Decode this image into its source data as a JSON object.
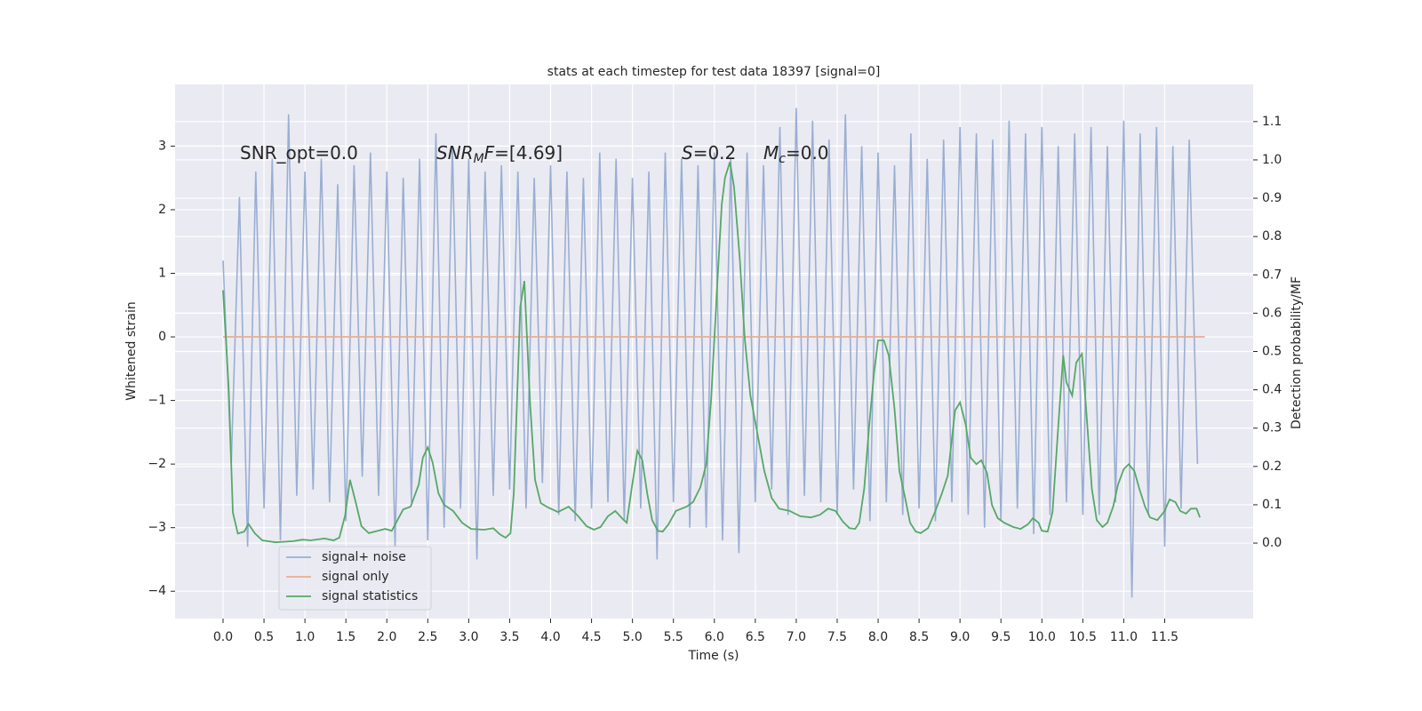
{
  "chart_data": {
    "type": "line",
    "title": "stats at each timestep for test data 18397 [signal=0]",
    "xlabel": "Time (s)",
    "ylabel": "Whitened strain",
    "y2label": "Detection probability/MF",
    "xlim": [
      -0.586,
      12.58
    ],
    "ylim": [
      -4.43,
      3.97
    ],
    "y2lim": [
      -0.197,
      1.197
    ],
    "xticks": [
      {
        "value": 0,
        "label": "0.0"
      },
      0.5,
      {
        "value": 1,
        "label": "1.0"
      },
      1.5,
      {
        "value": 2,
        "label": "2.0"
      },
      2.5,
      {
        "value": 3,
        "label": "3.0"
      },
      3.5,
      {
        "value": 4,
        "label": "4.0"
      },
      4.5,
      {
        "value": 5,
        "label": "5.0"
      },
      5.5,
      {
        "value": 6,
        "label": "6.0"
      },
      6.5,
      {
        "value": 7,
        "label": "7.0"
      },
      7.5,
      {
        "value": 8,
        "label": "8.0"
      },
      8.5,
      {
        "value": 9,
        "label": "9.0"
      },
      9.5,
      {
        "value": 10,
        "label": "10.0"
      },
      10.5,
      {
        "value": 11,
        "label": "11.0"
      },
      11.5
    ],
    "yticks": [
      {
        "value": -4,
        "label": "−4"
      },
      {
        "value": -3,
        "label": "−3"
      },
      {
        "value": -2,
        "label": "−2"
      },
      {
        "value": -1,
        "label": "−1"
      },
      0,
      1,
      2,
      3
    ],
    "y2ticks": [
      {
        "value": 0,
        "label": "0.0"
      },
      0.1,
      0.2,
      0.3,
      0.4,
      0.5,
      0.6,
      0.7,
      0.8,
      0.9,
      {
        "value": 1,
        "label": "1.0"
      },
      1.1
    ],
    "grid": true,
    "legend_loc": "lower left",
    "annotations": [
      {
        "parts": [
          {
            "text": "SNR_opt=0.0",
            "style": "normal"
          }
        ]
      },
      {
        "parts": [
          {
            "text": "SNR",
            "style": "italic"
          },
          {
            "text": "M",
            "style": "sub"
          },
          {
            "text": "F",
            "style": "italic"
          },
          {
            "text": "=[4.69]",
            "style": "normal"
          }
        ]
      },
      {
        "parts": [
          {
            "text": "S",
            "style": "italic"
          },
          {
            "text": "=0.2",
            "style": "normal"
          }
        ]
      },
      {
        "parts": [
          {
            "text": "M",
            "style": "italic"
          },
          {
            "text": "c",
            "style": "sub"
          },
          {
            "text": "=0.0",
            "style": "normal"
          }
        ]
      }
    ],
    "series": [
      {
        "name": "signal+ noise",
        "color": "#9aaed3",
        "x": [
          0.0,
          0.1,
          0.2,
          0.3,
          0.4,
          0.5,
          0.6,
          0.7,
          0.8,
          0.9,
          1.0,
          1.1,
          1.2,
          1.3,
          1.4,
          1.5,
          1.6,
          1.7,
          1.8,
          1.9,
          2.0,
          2.1,
          2.2,
          2.3,
          2.4,
          2.5,
          2.6,
          2.7,
          2.8,
          2.9,
          3.0,
          3.1,
          3.2,
          3.3,
          3.4,
          3.5,
          3.6,
          3.7,
          3.8,
          3.9,
          4.0,
          4.1,
          4.2,
          4.3,
          4.4,
          4.5,
          4.6,
          4.7,
          4.8,
          4.9,
          5.0,
          5.1,
          5.2,
          5.3,
          5.4,
          5.5,
          5.6,
          5.7,
          5.8,
          5.9,
          6.0,
          6.1,
          6.2,
          6.3,
          6.4,
          6.5,
          6.6,
          6.7,
          6.8,
          6.9,
          7.0,
          7.1,
          7.2,
          7.3,
          7.4,
          7.5,
          7.6,
          7.7,
          7.8,
          7.9,
          8.0,
          8.1,
          8.2,
          8.3,
          8.4,
          8.5,
          8.6,
          8.7,
          8.8,
          8.9,
          9.0,
          9.1,
          9.2,
          9.3,
          9.4,
          9.5,
          9.6,
          9.7,
          9.8,
          9.9,
          10.0,
          10.1,
          10.2,
          10.3,
          10.4,
          10.5,
          10.6,
          10.7,
          10.8,
          10.9,
          11.0,
          11.1,
          11.2,
          11.3,
          11.4,
          11.5,
          11.6,
          11.7,
          11.8,
          11.9
        ],
        "values": [
          1.2,
          -2.0,
          2.2,
          -3.3,
          2.6,
          -2.7,
          2.8,
          -3.2,
          3.5,
          -2.5,
          2.6,
          -2.4,
          2.8,
          -2.6,
          2.4,
          -2.9,
          2.7,
          -2.2,
          2.9,
          -2.5,
          2.6,
          -3.3,
          2.5,
          -2.6,
          2.8,
          -3.2,
          3.2,
          -3.0,
          3.0,
          -2.7,
          2.8,
          -3.5,
          2.6,
          -2.5,
          2.7,
          -2.4,
          2.6,
          -2.7,
          2.5,
          -2.3,
          2.7,
          -2.8,
          2.6,
          -2.9,
          2.5,
          -2.7,
          2.9,
          -2.6,
          2.8,
          -2.9,
          2.5,
          -2.7,
          2.6,
          -3.5,
          2.9,
          -2.6,
          2.8,
          -3.0,
          2.7,
          -3.0,
          2.9,
          -3.2,
          2.8,
          -3.4,
          2.9,
          -2.6,
          2.7,
          -2.4,
          3.3,
          -2.8,
          3.6,
          -2.5,
          3.4,
          -2.6,
          3.1,
          -2.8,
          3.5,
          -2.4,
          3.0,
          -2.9,
          2.9,
          -2.6,
          2.7,
          -2.8,
          3.2,
          -2.7,
          2.8,
          -2.9,
          3.1,
          -2.6,
          3.3,
          -2.8,
          3.2,
          -3.0,
          3.1,
          -2.9,
          3.4,
          -2.7,
          3.2,
          -3.1,
          3.3,
          -2.8,
          3.0,
          -2.6,
          3.2,
          -2.8,
          3.3,
          -2.8,
          3.0,
          -2.6,
          3.4,
          -4.1,
          3.2,
          -2.8,
          3.3,
          -3.3,
          3.0,
          -2.7,
          3.1,
          -2.0
        ]
      },
      {
        "name": "signal only",
        "color": "#e9ad93",
        "x": [
          0.0,
          11.99
        ],
        "values": [
          0,
          0
        ]
      },
      {
        "name": "signal statistics",
        "color": "#55a868",
        "axis": "y2",
        "x": [
          0,
          0.07,
          0.12,
          0.18,
          0.26,
          0.31,
          0.39,
          0.48,
          0.64,
          0.86,
          0.97,
          1.07,
          1.24,
          1.35,
          1.42,
          1.49,
          1.55,
          1.62,
          1.69,
          1.78,
          1.89,
          1.98,
          2.06,
          2.13,
          2.2,
          2.29,
          2.39,
          2.44,
          2.5,
          2.56,
          2.63,
          2.7,
          2.81,
          2.92,
          3.03,
          3.19,
          3.3,
          3.38,
          3.45,
          3.51,
          3.55,
          3.63,
          3.68,
          3.75,
          3.81,
          3.88,
          3.97,
          4.09,
          4.22,
          4.33,
          4.44,
          4.53,
          4.61,
          4.7,
          4.79,
          4.88,
          4.93,
          4.99,
          5.06,
          5.12,
          5.18,
          5.24,
          5.31,
          5.37,
          5.44,
          5.53,
          5.66,
          5.74,
          5.83,
          5.9,
          5.96,
          6.03,
          6.09,
          6.13,
          6.19,
          6.24,
          6.31,
          6.37,
          6.44,
          6.53,
          6.61,
          6.7,
          6.79,
          6.92,
          7.05,
          7.18,
          7.29,
          7.39,
          7.48,
          7.57,
          7.65,
          7.72,
          7.77,
          7.83,
          7.89,
          7.95,
          8.0,
          8.07,
          8.13,
          8.2,
          8.26,
          8.33,
          8.39,
          8.46,
          8.52,
          8.61,
          8.7,
          8.78,
          8.85,
          8.94,
          9.0,
          9.07,
          9.13,
          9.2,
          9.26,
          9.33,
          9.39,
          9.46,
          9.54,
          9.65,
          9.74,
          9.83,
          9.89,
          9.96,
          10.0,
          10.07,
          10.13,
          10.2,
          10.26,
          10.3,
          10.37,
          10.42,
          10.49,
          10.54,
          10.61,
          10.67,
          10.74,
          10.8,
          10.87,
          10.93,
          11.0,
          11.06,
          11.13,
          11.19,
          11.26,
          11.32,
          11.41,
          11.5,
          11.56,
          11.63,
          11.69,
          11.76,
          11.82,
          11.89,
          11.93
        ],
        "values": [
          0.66,
          0.4,
          0.08,
          0.025,
          0.03,
          0.05,
          0.025,
          0.007,
          0.002,
          0.005,
          0.009,
          0.007,
          0.012,
          0.007,
          0.014,
          0.072,
          0.165,
          0.107,
          0.044,
          0.026,
          0.032,
          0.037,
          0.032,
          0.06,
          0.088,
          0.095,
          0.153,
          0.223,
          0.25,
          0.21,
          0.13,
          0.1,
          0.084,
          0.053,
          0.037,
          0.035,
          0.039,
          0.023,
          0.014,
          0.026,
          0.13,
          0.617,
          0.684,
          0.362,
          0.165,
          0.104,
          0.093,
          0.081,
          0.095,
          0.072,
          0.044,
          0.035,
          0.042,
          0.07,
          0.084,
          0.063,
          0.053,
          0.142,
          0.241,
          0.216,
          0.13,
          0.06,
          0.032,
          0.03,
          0.049,
          0.084,
          0.095,
          0.107,
          0.146,
          0.206,
          0.374,
          0.652,
          0.884,
          0.954,
          0.995,
          0.93,
          0.745,
          0.536,
          0.385,
          0.281,
          0.188,
          0.118,
          0.09,
          0.084,
          0.07,
          0.067,
          0.074,
          0.09,
          0.084,
          0.056,
          0.039,
          0.037,
          0.053,
          0.142,
          0.304,
          0.443,
          0.529,
          0.529,
          0.49,
          0.35,
          0.188,
          0.118,
          0.053,
          0.03,
          0.026,
          0.039,
          0.084,
          0.13,
          0.176,
          0.346,
          0.367,
          0.309,
          0.223,
          0.206,
          0.216,
          0.183,
          0.1,
          0.065,
          0.053,
          0.042,
          0.037,
          0.049,
          0.065,
          0.053,
          0.032,
          0.03,
          0.081,
          0.304,
          0.49,
          0.42,
          0.385,
          0.471,
          0.494,
          0.35,
          0.142,
          0.06,
          0.042,
          0.053,
          0.095,
          0.153,
          0.193,
          0.206,
          0.188,
          0.142,
          0.095,
          0.067,
          0.06,
          0.084,
          0.114,
          0.107,
          0.084,
          0.077,
          0.09,
          0.09,
          0.067
        ]
      }
    ]
  }
}
